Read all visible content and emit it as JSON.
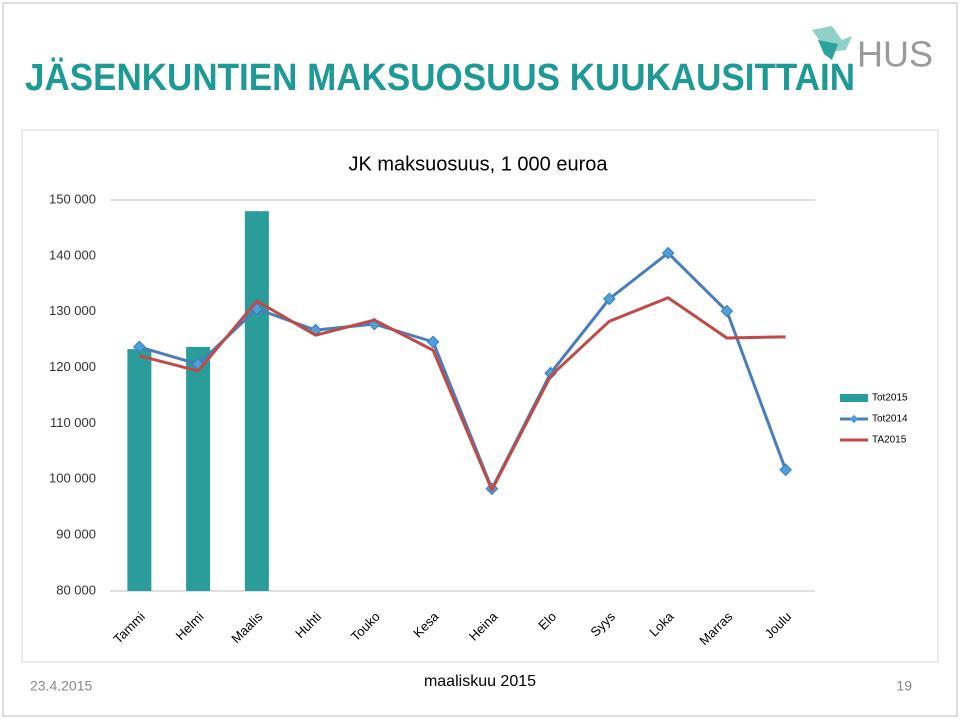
{
  "header": {
    "title": "JÄSENKUNTIEN MAKSUOSUUS KUUKAUSITTAIN",
    "logo": "HUS"
  },
  "footer": {
    "date": "23.4.2015",
    "center": "maaliskuu 2015",
    "page": "19"
  },
  "chart_data": {
    "type": "bar-line",
    "title": "JK maksuosuus, 1 000 euroa",
    "categories": [
      "Tammi",
      "Helmi",
      "Maalis",
      "Huhti",
      "Touko",
      "Kesa",
      "Heina",
      "Elo",
      "Syys",
      "Loka",
      "Marras",
      "Joulu"
    ],
    "series": [
      {
        "name": "Tot2015",
        "type": "bar",
        "color": "#2a9d9a",
        "values": [
          123300,
          123700,
          148000,
          null,
          null,
          null,
          null,
          null,
          null,
          null,
          null,
          null
        ]
      },
      {
        "name": "Tot2014",
        "type": "line",
        "marker": true,
        "color": "#4a7ebb",
        "values": [
          123700,
          120600,
          130500,
          126700,
          127800,
          124600,
          98300,
          119000,
          132300,
          140500,
          130100,
          101700
        ]
      },
      {
        "name": "TA2015",
        "type": "line",
        "marker": false,
        "color": "#be4b48",
        "values": [
          122100,
          119400,
          131900,
          125800,
          128500,
          123100,
          98100,
          118500,
          128300,
          132500,
          125300,
          125500
        ]
      }
    ],
    "ylim": [
      80000,
      150000
    ],
    "yticks": [
      {
        "value": 80000,
        "label": "80 000"
      },
      {
        "value": 90000,
        "label": "90 000"
      },
      {
        "value": 100000,
        "label": "100 000"
      },
      {
        "value": 110000,
        "label": "110 000"
      },
      {
        "value": 120000,
        "label": "120 000"
      },
      {
        "value": 130000,
        "label": "130 000"
      },
      {
        "value": 140000,
        "label": "140 000"
      },
      {
        "value": 150000,
        "label": "150 000"
      }
    ],
    "grid": false,
    "legend": "right"
  }
}
